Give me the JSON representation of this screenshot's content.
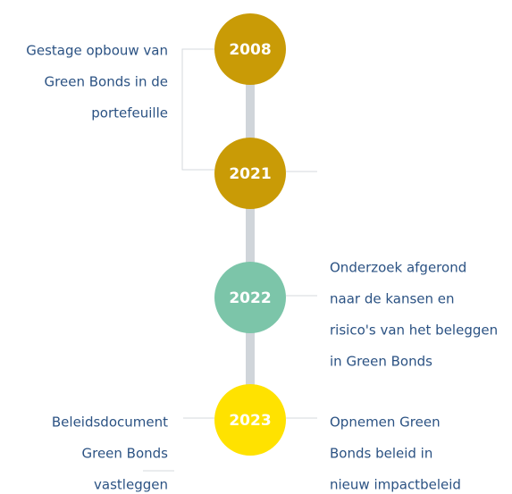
{
  "timeline": [
    {
      "year": "2008",
      "left": [
        "Gestage opbouw van",
        "Green Bonds in de",
        "portefeuille"
      ]
    },
    {
      "year": "2021"
    },
    {
      "year": "2022",
      "right": [
        "Onderzoek afgerond",
        "naar de kansen en",
        "risico's van het beleggen",
        "in Green Bonds"
      ]
    },
    {
      "year": "2023",
      "left": [
        "Beleidsdocument",
        "Green Bonds",
        "vastleggen"
      ],
      "right": [
        "Opnemen Green",
        "Bonds beleid in",
        "nieuw impactbeleid"
      ]
    }
  ]
}
